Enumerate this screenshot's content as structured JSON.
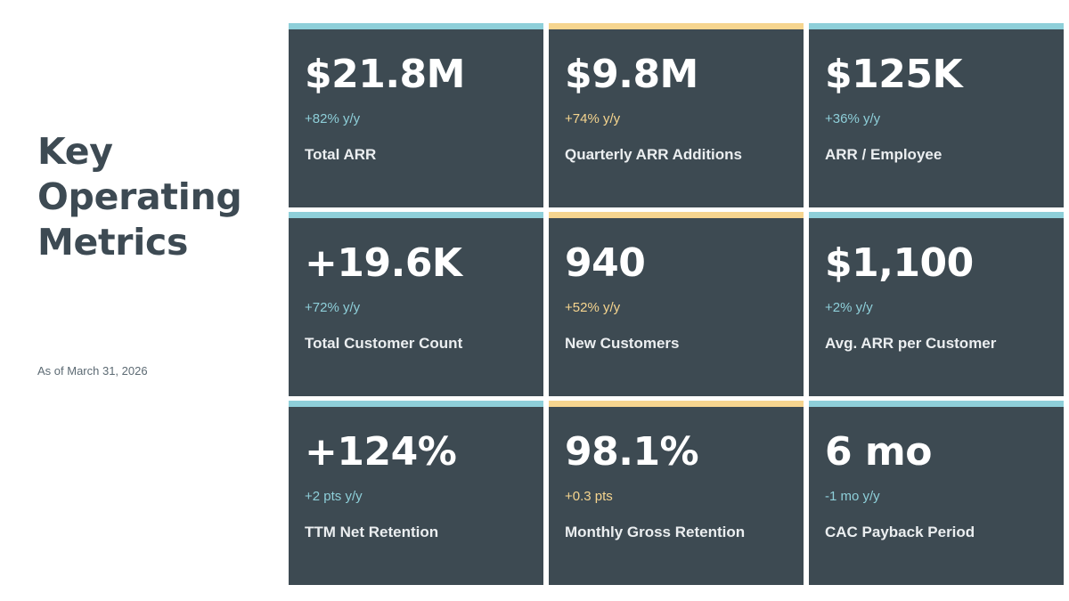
{
  "page": {
    "title_lines": [
      "Key",
      "Operating",
      "Metrics"
    ],
    "as_of": "As of March 31, 2026"
  },
  "colors": {
    "card_bg": "#3d4a52",
    "accent_teal": "#8ecfd9",
    "accent_gold": "#f6d58f",
    "title_text": "#3d4a53"
  },
  "metrics": [
    {
      "value": "$21.8M",
      "delta": "+82% y/y",
      "label": "Total ARR",
      "accent": "teal"
    },
    {
      "value": "$9.8M",
      "delta": "+74% y/y",
      "label": "Quarterly ARR Additions",
      "accent": "gold"
    },
    {
      "value": "$125K",
      "delta": "+36% y/y",
      "label": "ARR / Employee",
      "accent": "teal"
    },
    {
      "value": "+19.6K",
      "delta": "+72% y/y",
      "label": "Total Customer Count",
      "accent": "teal"
    },
    {
      "value": "940",
      "delta": "+52% y/y",
      "label": "New Customers",
      "accent": "gold"
    },
    {
      "value": "$1,100",
      "delta": "+2% y/y",
      "label": "Avg. ARR per Customer",
      "accent": "teal"
    },
    {
      "value": "+124%",
      "delta": "+2 pts y/y",
      "label": "TTM Net Retention",
      "accent": "teal"
    },
    {
      "value": "98.1%",
      "delta": "+0.3 pts",
      "label": "Monthly Gross Retention",
      "accent": "gold"
    },
    {
      "value": "6 mo",
      "delta": "-1 mo y/y",
      "label": "CAC Payback Period",
      "accent": "teal"
    }
  ]
}
